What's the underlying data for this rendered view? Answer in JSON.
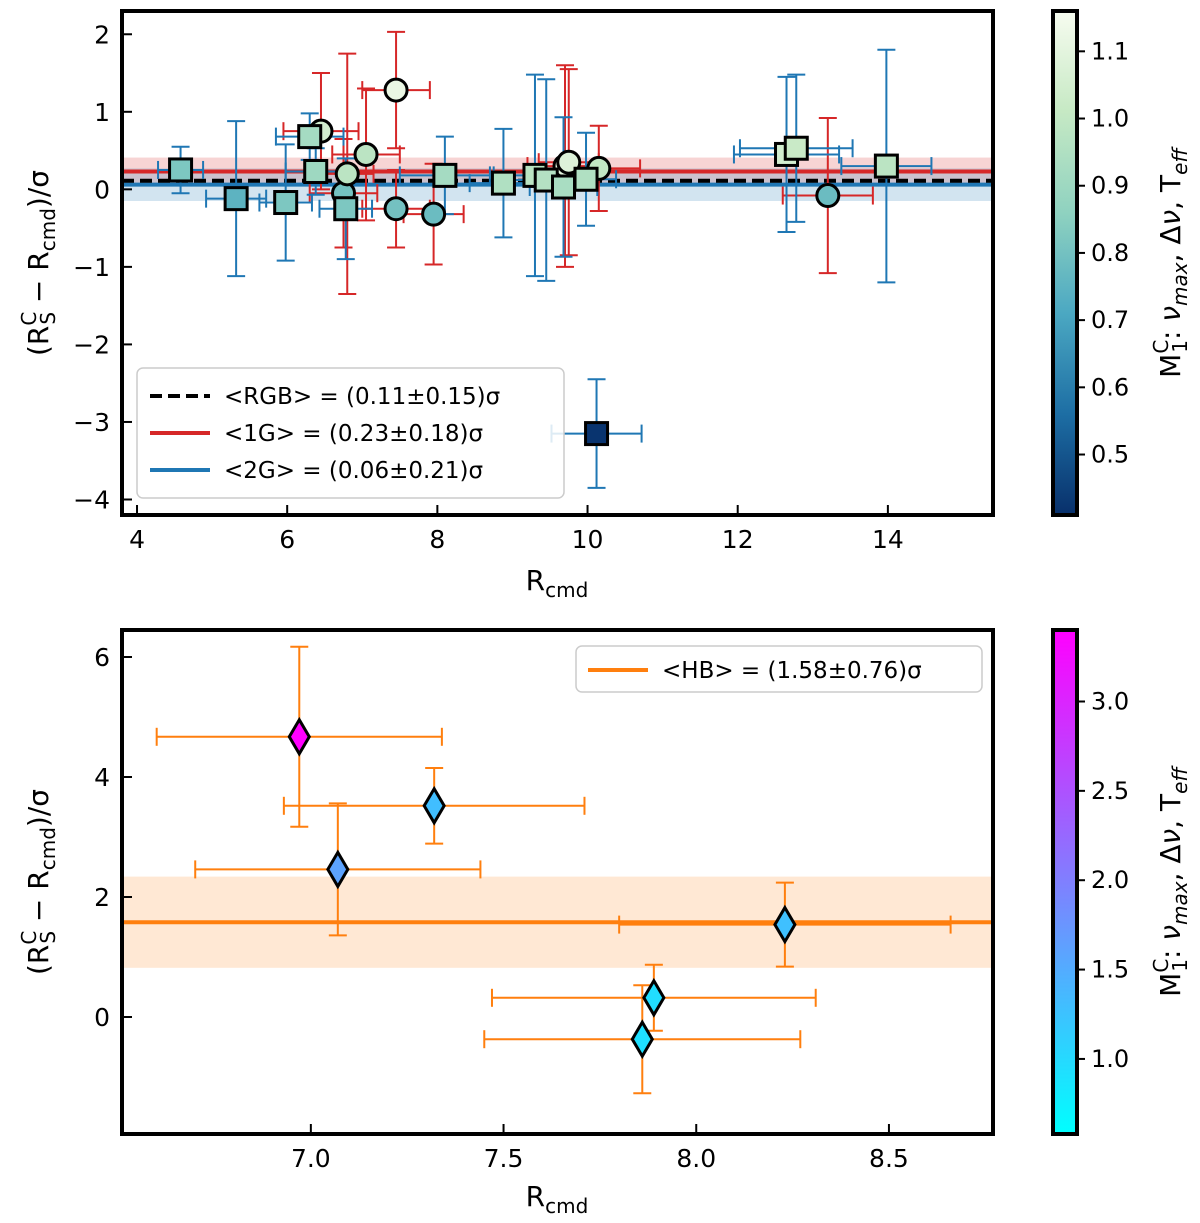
{
  "chart_data": [
    {
      "type": "scatter",
      "panel": "top",
      "xlabel": "R_cmd",
      "ylabel": "(R_S^C − R_cmd)/σ",
      "xlim": [
        3.8,
        15.4
      ],
      "ylim": [
        -4.2,
        2.3
      ],
      "xticks": [
        4,
        6,
        8,
        10,
        12,
        14
      ],
      "yticks": [
        2,
        1,
        0,
        -1,
        -2,
        -3,
        -4
      ],
      "xtick_labels": [
        "4",
        "6",
        "8",
        "10",
        "12",
        "14"
      ],
      "ytick_labels": [
        "2",
        "1",
        "0",
        "−1",
        "−2",
        "−3",
        "−4"
      ],
      "colorbar": {
        "label": "M_1^C: ν_max, Δν, T_eff",
        "range": [
          0.41,
          1.16
        ],
        "ticks": [
          0.5,
          0.6,
          0.7,
          0.8,
          0.9,
          1.0,
          1.1
        ],
        "tick_labels": [
          "0.5",
          "0.6",
          "0.7",
          "0.8",
          "0.9",
          "1.0",
          "1.1"
        ],
        "colormap": [
          "#08306b",
          "#1d6ea4",
          "#4ba8c2",
          "#8fd2c0",
          "#c6e9c4",
          "#f7fcf0"
        ]
      },
      "reference_lines": [
        {
          "name": "RGB",
          "mean": 0.11,
          "err": 0.15,
          "color": "#000000",
          "style": "dashed"
        },
        {
          "name": "1G",
          "mean": 0.23,
          "err": 0.18,
          "color": "#d62728",
          "style": "solid"
        },
        {
          "name": "2G",
          "mean": 0.06,
          "err": 0.21,
          "color": "#1f77b4",
          "style": "solid"
        }
      ],
      "legend": {
        "location": "lower-left",
        "entries": [
          {
            "name": "RGB",
            "text": "<RGB> = (0.11±0.15)σ"
          },
          {
            "name": "1G",
            "text": "<1G> = (0.23±0.18)σ"
          },
          {
            "name": "2G",
            "text": "<2G> = (0.06±0.21)σ"
          }
        ]
      },
      "series": [
        {
          "name": "1G",
          "marker": "circle",
          "errorbar_color": "#d62728",
          "points": [
            {
              "x": 6.45,
              "y": 0.75,
              "xerr": 0.5,
              "yerr": 0.75,
              "c": 1.05
            },
            {
              "x": 6.75,
              "y": -0.05,
              "xerr": 0.45,
              "yerr": 0.7,
              "c": 0.8
            },
            {
              "x": 7.05,
              "y": 0.45,
              "xerr": 0.45,
              "yerr": 0.85,
              "c": 0.98
            },
            {
              "x": 7.45,
              "y": 1.28,
              "xerr": 0.45,
              "yerr": 0.75,
              "c": 1.12
            },
            {
              "x": 7.45,
              "y": -0.25,
              "xerr": 0.45,
              "yerr": 0.5,
              "c": 0.8
            },
            {
              "x": 7.95,
              "y": -0.32,
              "xerr": 0.4,
              "yerr": 0.65,
              "c": 0.78
            },
            {
              "x": 6.8,
              "y": 0.2,
              "xerr": 0.35,
              "yerr": 1.55,
              "c": 0.98
            },
            {
              "x": 9.7,
              "y": 0.3,
              "xerr": 0.5,
              "yerr": 1.3,
              "c": 1.1
            },
            {
              "x": 9.75,
              "y": 0.35,
              "xerr": 0.4,
              "yerr": 1.2,
              "c": 1.08
            },
            {
              "x": 10.15,
              "y": 0.27,
              "xerr": 0.55,
              "yerr": 0.55,
              "c": 1.0
            },
            {
              "x": 13.2,
              "y": -0.08,
              "xerr": 0.6,
              "yerr": 1.0,
              "c": 0.78
            }
          ]
        },
        {
          "name": "2G",
          "marker": "square",
          "errorbar_color": "#1f77b4",
          "points": [
            {
              "x": 4.58,
              "y": 0.25,
              "xerr": 0.3,
              "yerr": 0.3,
              "c": 0.82
            },
            {
              "x": 5.32,
              "y": -0.12,
              "xerr": 0.4,
              "yerr": 1.0,
              "c": 0.75
            },
            {
              "x": 5.98,
              "y": -0.17,
              "xerr": 0.35,
              "yerr": 0.75,
              "c": 0.82
            },
            {
              "x": 6.3,
              "y": 0.68,
              "xerr": 0.45,
              "yerr": 0.3,
              "c": 0.92
            },
            {
              "x": 6.38,
              "y": 0.23,
              "xerr": 0.4,
              "yerr": 0.3,
              "c": 0.9
            },
            {
              "x": 6.78,
              "y": -0.25,
              "xerr": 0.35,
              "yerr": 0.65,
              "c": 0.82
            },
            {
              "x": 8.1,
              "y": 0.18,
              "xerr": 0.6,
              "yerr": 0.5,
              "c": 0.92
            },
            {
              "x": 8.88,
              "y": 0.08,
              "xerr": 0.45,
              "yerr": 0.7,
              "c": 0.95
            },
            {
              "x": 9.3,
              "y": 0.18,
              "xerr": 0.55,
              "yerr": 1.3,
              "c": 0.98
            },
            {
              "x": 9.45,
              "y": 0.12,
              "xerr": 0.5,
              "yerr": 1.3,
              "c": 0.96
            },
            {
              "x": 9.68,
              "y": 0.03,
              "xerr": 0.45,
              "yerr": 0.9,
              "c": 0.93
            },
            {
              "x": 9.98,
              "y": 0.13,
              "xerr": 0.4,
              "yerr": 0.6,
              "c": 0.95
            },
            {
              "x": 12.65,
              "y": 0.45,
              "xerr": 0.7,
              "yerr": 1.0,
              "c": 1.05
            },
            {
              "x": 12.78,
              "y": 0.53,
              "xerr": 0.75,
              "yerr": 0.95,
              "c": 1.02
            },
            {
              "x": 13.98,
              "y": 0.3,
              "xerr": 0.6,
              "yerr": 1.5,
              "c": 0.98
            },
            {
              "x": 10.12,
              "y": -3.15,
              "xerr": 0.6,
              "yerr": 0.7,
              "c": 0.42
            }
          ]
        }
      ]
    },
    {
      "type": "scatter",
      "panel": "bottom",
      "xlabel": "R_cmd",
      "ylabel": "(R_S^C − R_cmd)/σ",
      "xlim": [
        6.51,
        8.77
      ],
      "ylim": [
        -1.95,
        6.45
      ],
      "xticks": [
        7.0,
        7.5,
        8.0,
        8.5
      ],
      "yticks": [
        6,
        4,
        2,
        0
      ],
      "xtick_labels": [
        "7.0",
        "7.5",
        "8.0",
        "8.5"
      ],
      "ytick_labels": [
        "6",
        "4",
        "2",
        "0"
      ],
      "colorbar": {
        "label": "M_1^C: ν_max, Δν, T_eff",
        "range": [
          0.58,
          3.4
        ],
        "ticks": [
          1.0,
          1.5,
          2.0,
          2.5,
          3.0
        ],
        "tick_labels": [
          "1.0",
          "1.5",
          "2.0",
          "2.5",
          "3.0"
        ],
        "colormap": [
          "#00ffff",
          "#ff00ff"
        ]
      },
      "reference_lines": [
        {
          "name": "HB",
          "mean": 1.58,
          "err": 0.76,
          "color": "#ff7f0e",
          "style": "solid"
        }
      ],
      "legend": {
        "location": "top-right",
        "entries": [
          {
            "name": "HB",
            "text": "<HB> = (1.58±0.76)σ"
          }
        ]
      },
      "series": [
        {
          "name": "HB",
          "marker": "diamond",
          "errorbar_color": "#ff7f0e",
          "points": [
            {
              "x": 6.97,
              "y": 4.67,
              "xerr": 0.37,
              "yerr": 1.5,
              "c": 3.4
            },
            {
              "x": 7.32,
              "y": 3.52,
              "xerr": 0.39,
              "yerr": 0.63,
              "c": 1.3
            },
            {
              "x": 7.07,
              "y": 2.46,
              "xerr": 0.37,
              "yerr": 1.1,
              "c": 1.6
            },
            {
              "x": 8.23,
              "y": 1.54,
              "xerr": 0.43,
              "yerr": 0.7,
              "c": 1.28
            },
            {
              "x": 7.89,
              "y": 0.32,
              "xerr": 0.42,
              "yerr": 0.55,
              "c": 0.95
            },
            {
              "x": 7.86,
              "y": -0.37,
              "xerr": 0.41,
              "yerr": 0.9,
              "c": 0.92
            }
          ]
        }
      ]
    }
  ]
}
